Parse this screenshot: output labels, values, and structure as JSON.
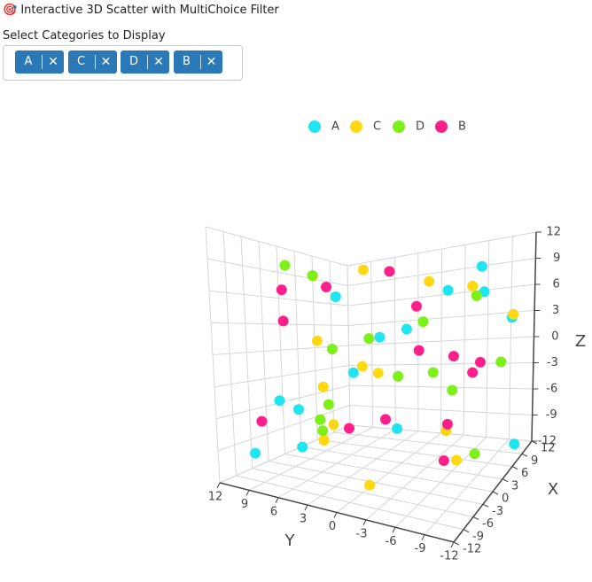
{
  "header": {
    "title": "🎯 Interactive 3D Scatter with MultiChoice Filter",
    "select_label": "Select Categories to Display"
  },
  "chart_data": {
    "type": "scatter3d",
    "xlabel": "X",
    "ylabel": "Y",
    "zlabel": "Z",
    "xlim": [
      -12,
      12
    ],
    "ylim": [
      -12,
      12
    ],
    "zlim": [
      -12,
      12
    ],
    "xticks": [
      -12,
      -9,
      -6,
      -3,
      0,
      3,
      6,
      9,
      12
    ],
    "yticks": [
      -12,
      -9,
      -6,
      -3,
      0,
      3,
      6,
      9,
      12
    ],
    "zticks": [
      -12,
      -9,
      -6,
      -3,
      0,
      3,
      6,
      9,
      12
    ],
    "grid": true,
    "series": [
      {
        "name": "A",
        "color": "#1fe5f2",
        "x": [
          8,
          -5,
          10,
          2,
          -9,
          6,
          -2,
          11,
          -7,
          4,
          0,
          -11,
          9,
          -4
        ],
        "y": [
          -3,
          7,
          -10,
          5,
          1,
          -8,
          9,
          -6,
          11,
          3,
          -1,
          6,
          -11,
          -4
        ],
        "z": [
          7,
          -9,
          3,
          -2,
          8,
          10,
          -6,
          6,
          -10,
          2,
          -7,
          -3,
          -11,
          5
        ]
      },
      {
        "name": "C",
        "color": "#ffd814",
        "x": [
          3,
          -8,
          10,
          -3,
          6,
          -10,
          1,
          8,
          -6,
          11,
          -1,
          5,
          -11,
          7
        ],
        "y": [
          10,
          2,
          -5,
          -9,
          6,
          -2,
          8,
          -11,
          4,
          1,
          -7,
          11,
          -3,
          5
        ],
        "z": [
          9,
          -5,
          7,
          -8,
          10,
          2,
          -10,
          4,
          -2,
          8,
          -6,
          1,
          -9,
          -3
        ]
      },
      {
        "name": "D",
        "color": "#7cf018",
        "x": [
          -5,
          9,
          2,
          -10,
          7,
          -2,
          11,
          -7,
          4,
          0,
          -9,
          6,
          -3,
          10
        ],
        "y": [
          4,
          -6,
          9,
          1,
          -10,
          7,
          -2,
          -8,
          10,
          -4,
          6,
          2,
          -11,
          8
        ],
        "z": [
          -4,
          6,
          -8,
          3,
          -1,
          9,
          -6,
          2,
          -10,
          5,
          10,
          -3,
          -7,
          1
        ]
      },
      {
        "name": "B",
        "color": "#ff1f8a",
        "x": [
          6,
          -3,
          10,
          -9,
          1,
          8,
          -6,
          3,
          -1,
          11,
          -11,
          5,
          -4,
          7
        ],
        "y": [
          -7,
          5,
          2,
          9,
          -10,
          -3,
          8,
          -5,
          11,
          6,
          -1,
          3,
          -9,
          0
        ],
        "z": [
          -2,
          8,
          5,
          -6,
          1,
          -9,
          4,
          -11,
          7,
          10,
          -4,
          -8,
          3,
          0
        ]
      }
    ]
  }
}
